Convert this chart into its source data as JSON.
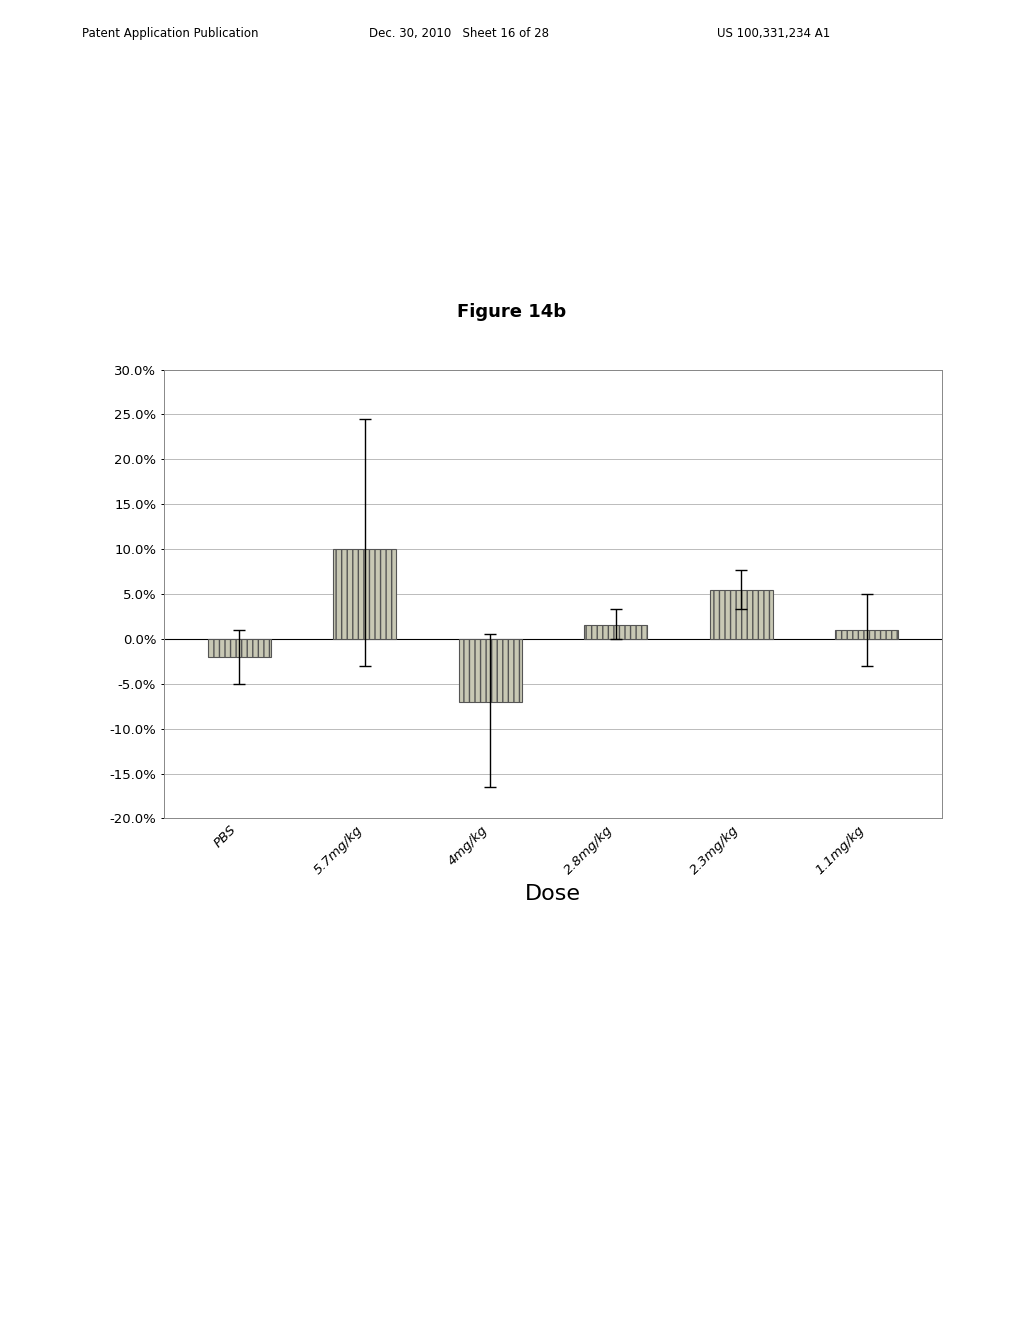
{
  "categories": [
    "PBS",
    "5.7mg/kg",
    "4mg/kg",
    "2.8mg/kg",
    "2.3mg/kg",
    "1.1mg/kg"
  ],
  "bar_values": [
    -0.02,
    0.1,
    -0.07,
    0.015,
    0.055,
    0.01
  ],
  "error_upper": [
    0.03,
    0.145,
    0.075,
    0.018,
    0.022,
    0.04
  ],
  "error_lower": [
    0.03,
    0.13,
    0.095,
    0.015,
    0.022,
    0.04
  ],
  "bar_color": "#c8c8b4",
  "bar_edgecolor": "#555555",
  "ylim": [
    -0.2,
    0.3
  ],
  "yticks": [
    -0.2,
    -0.15,
    -0.1,
    -0.05,
    0.0,
    0.05,
    0.1,
    0.15,
    0.2,
    0.25,
    0.3
  ],
  "ytick_labels": [
    "-20.0%",
    "-15.0%",
    "-10.0%",
    "-5.0%",
    "0.0%",
    "5.0%",
    "10.0%",
    "15.0%",
    "20.0%",
    "25.0%",
    "30.0%"
  ],
  "xlabel": "Dose",
  "figure_title": "Figure 14b",
  "header_left": "Patent Application Publication",
  "header_center": "Dec. 30, 2010   Sheet 16 of 28",
  "header_right": "US 100,331,234 A1",
  "background_color": "#ffffff",
  "grid_color": "#bbbbbb",
  "bar_width": 0.5,
  "fig_width": 10.24,
  "fig_height": 13.2
}
